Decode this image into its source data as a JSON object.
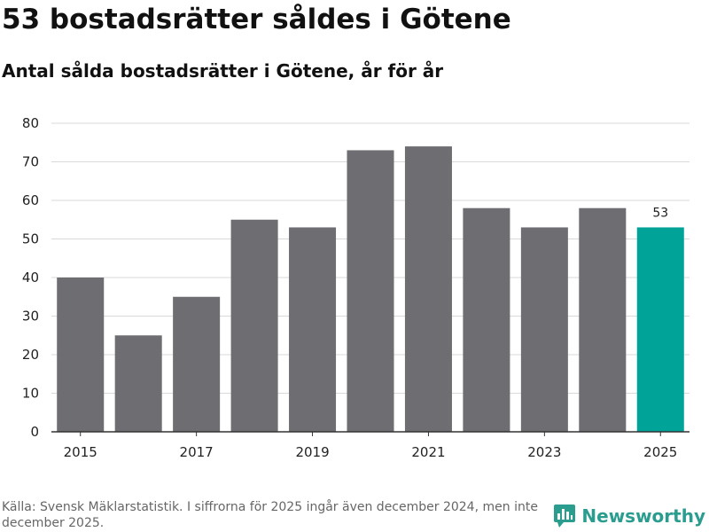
{
  "header": {
    "title": "53 bostadsrätter såldes i Götene",
    "subtitle": "Antal sålda bostadsrätter i Götene, år för år"
  },
  "footer": {
    "source": "Källa: Svensk Mäklarstatistik. I siffrorna för 2025 ingår även december 2024, men inte december 2025.",
    "brand": "Newsworthy"
  },
  "colors": {
    "bar": "#6e6d71",
    "highlight": "#00a398",
    "grid": "#d9d9d9",
    "axis": "#333333",
    "brand": "#2a9d8f"
  },
  "chart_data": {
    "type": "bar",
    "title": "53 bostadsrätter såldes i Götene",
    "subtitle": "Antal sålda bostadsrätter i Götene, år för år",
    "xlabel": "",
    "ylabel": "",
    "categories": [
      2015,
      2016,
      2017,
      2018,
      2019,
      2020,
      2021,
      2022,
      2023,
      2024,
      2025
    ],
    "values": [
      40,
      25,
      35,
      55,
      53,
      73,
      74,
      58,
      53,
      58,
      53
    ],
    "x_tick_labels": [
      "2015",
      "2017",
      "2019",
      "2021",
      "2023",
      "2025"
    ],
    "y_ticks": [
      0,
      10,
      20,
      30,
      40,
      50,
      60,
      70,
      80
    ],
    "ylim": [
      0,
      80
    ],
    "grid": true,
    "highlight_index": 10,
    "annotations": [
      {
        "index": 10,
        "text": "53"
      }
    ]
  }
}
